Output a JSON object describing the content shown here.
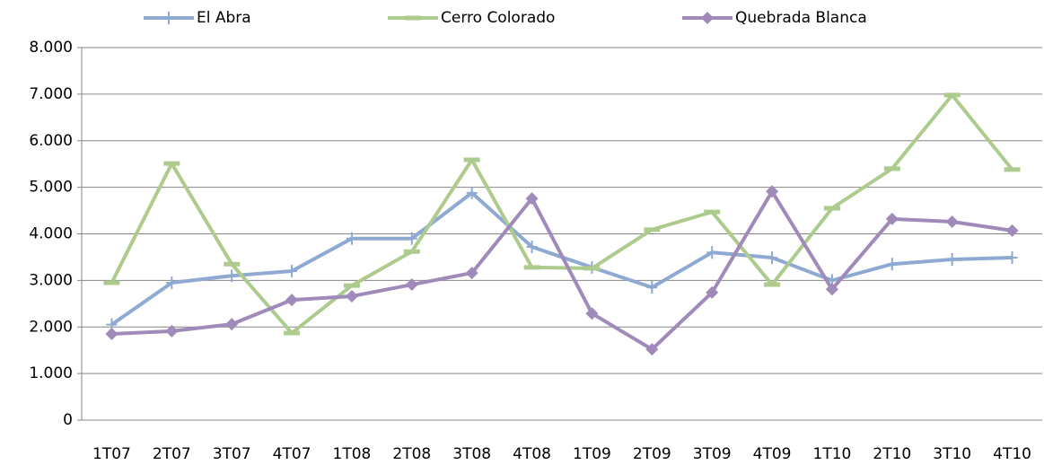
{
  "chart_data": {
    "type": "line",
    "categories": [
      "1T07",
      "2T07",
      "3T07",
      "4T07",
      "1T08",
      "2T08",
      "3T08",
      "4T08",
      "1T09",
      "2T09",
      "3T09",
      "4T09",
      "1T10",
      "2T10",
      "3T10",
      "4T10"
    ],
    "series": [
      {
        "name": "El Abra",
        "color": "#8eaad2",
        "marker": "plus",
        "values": [
          2050,
          2950,
          3100,
          3200,
          3900,
          3900,
          4880,
          3720,
          3280,
          2850,
          3600,
          3490,
          3000,
          3350,
          3450,
          3490
        ]
      },
      {
        "name": "Cerro Colorado",
        "color": "#aecb8e",
        "marker": "dash",
        "values": [
          2950,
          5510,
          3350,
          1870,
          2890,
          3620,
          5590,
          3280,
          3260,
          4090,
          4470,
          2910,
          4550,
          5400,
          6980,
          5380
        ]
      },
      {
        "name": "Quebrada Blanca",
        "color": "#a08ab9",
        "marker": "diamond",
        "values": [
          1850,
          1910,
          2060,
          2580,
          2660,
          2910,
          3160,
          4760,
          2290,
          1520,
          2740,
          4910,
          2810,
          4320,
          4260,
          4070
        ]
      }
    ],
    "ylim": [
      0,
      8000
    ],
    "yticks": [
      0,
      {
        "value": 1000,
        "label": "1.000"
      },
      {
        "value": 2000,
        "label": "2.000"
      },
      {
        "value": 3000,
        "label": "3.000"
      },
      {
        "value": 4000,
        "label": "4.000"
      },
      {
        "value": 5000,
        "label": "5.000"
      },
      {
        "value": 6000,
        "label": "6.000"
      },
      {
        "value": 7000,
        "label": "7.000"
      },
      {
        "value": 8000,
        "label": "8.000"
      }
    ],
    "grid": true,
    "legend": "top"
  }
}
